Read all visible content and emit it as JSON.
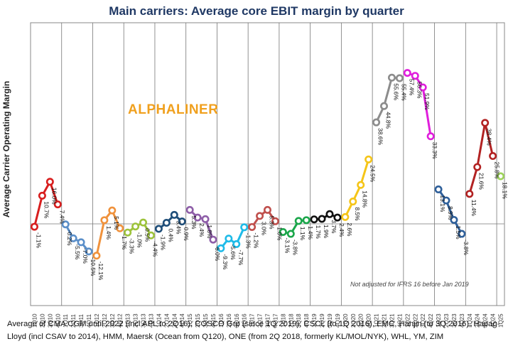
{
  "chart_data": {
    "type": "line",
    "title": "Main carriers: Average core EBIT margin by quarter",
    "ylabel": "Average Carrier Operating Margin",
    "watermark": "ALPHALINER",
    "note": "Not adjusted for IFRS 16 before Jan 2019",
    "footnote": "Average of CMA CGM until 2022 (incl APL to 2Q16), COSCO Grp (since 1Q 2019), CSCL (to 1Q 2016), EMC, Hanjin (to 3Q 2016), Hapag-Lloyd (incl CSAV to 2014), HMM, Maersk (Ocean from Q120), ONE (from 2Q 2018, formerly KL/MOL/NYK), WHL, YM, ZIM",
    "ylim": [
      -13,
      60
    ],
    "categories": [
      "1Q10",
      "2Q10",
      "3Q10",
      "4Q10",
      "1Q11",
      "2Q11",
      "3Q11",
      "4Q11",
      "1Q12",
      "2Q12",
      "3Q12",
      "4Q12",
      "1Q13",
      "2Q13",
      "3Q13",
      "4Q13",
      "1Q14",
      "2Q14",
      "3Q14",
      "4Q14",
      "1Q15",
      "2Q15",
      "3Q15",
      "4Q15",
      "1Q16",
      "2Q16",
      "3Q16",
      "4Q16",
      "1Q17",
      "2Q17",
      "3Q17",
      "4Q17",
      "1Q18",
      "2Q18",
      "3Q18",
      "4Q18",
      "1Q19",
      "2Q19",
      "3Q19",
      "4Q19",
      "1Q20",
      "2Q20",
      "3Q20",
      "4Q20",
      "1Q21",
      "2Q21",
      "3Q21",
      "4Q21",
      "1Q22",
      "2Q22",
      "3Q22",
      "4Q22",
      "1Q23",
      "2Q23",
      "3Q23",
      "4Q23",
      "1Q24",
      "2Q24",
      "3Q24",
      "4Q24",
      "1Q25"
    ],
    "values": [
      -1.1,
      10.7,
      16.0,
      7.4,
      -0.2,
      -5.5,
      -7.0,
      -10.5,
      -12.1,
      1.4,
      5.1,
      -1.7,
      -3.3,
      -1.0,
      0.5,
      -4.4,
      -1.9,
      0.4,
      3.4,
      0.9,
      5.3,
      2.4,
      1.8,
      -6.0,
      -9.3,
      -5.6,
      -7.7,
      -1.3,
      -1.2,
      3.0,
      5.3,
      1.0,
      -3.1,
      -3.8,
      1.1,
      1.4,
      1.7,
      1.9,
      3.7,
      2.4,
      2.6,
      8.5,
      14.8,
      24.5,
      38.6,
      44.8,
      55.6,
      55.4,
      57.4,
      56.3,
      51.9,
      33.3,
      13.1,
      8.9,
      1.5,
      -3.8,
      11.4,
      21.6,
      38.4,
      25.8,
      18.1
    ],
    "labels": [
      "-1.1%",
      "10.7%",
      "16.0%",
      "7.4%",
      "-0.2%",
      "-5.5%",
      "-7.0%",
      "-10.5%",
      "-12.1%",
      "1.4%",
      "5.1%",
      "-1.7%",
      "-3.3%",
      "-1.0%",
      "0.5%",
      "-4.4%",
      "-1.9%",
      "0.4%",
      "3.4%",
      "0.9%",
      "5.3%",
      "2.4%",
      "1.8%",
      "-6.0%",
      "-9.3%",
      "-5.6%",
      "-7.7%",
      "-1.3%",
      "-1.2%",
      "3.0%",
      "5.3%",
      "1.0%",
      "-3.1%",
      "-3.8%",
      "1.1%",
      "1.4%",
      "1.7%",
      "1.9%",
      "3.7%",
      "2.4%",
      "2.6%",
      "8.5%",
      "14.8%",
      "24.5%",
      "38.6%",
      "44.8%",
      "55.6%",
      "55.4%",
      "57.4%",
      "56.3%",
      "51.9%",
      "33.3%",
      "13.1%",
      "8.9%",
      "1.5%",
      "-3.8%",
      "11.4%",
      "21.6%",
      "38.4%",
      "25.8%",
      "18.1%"
    ],
    "year_colors": [
      "#d81e1e",
      "#5b8fc9",
      "#f0923c",
      "#9dc33c",
      "#1f4e79",
      "#8e5ea8",
      "#1fbbe8",
      "#c0504d",
      "#1aa64a",
      "#111111",
      "#f5c518",
      "#8c8c8c",
      "#e01edc",
      "#2e5f9a",
      "#b22222",
      "#9dd35a"
    ],
    "grid": "vertical lines between years",
    "legend": "none"
  }
}
